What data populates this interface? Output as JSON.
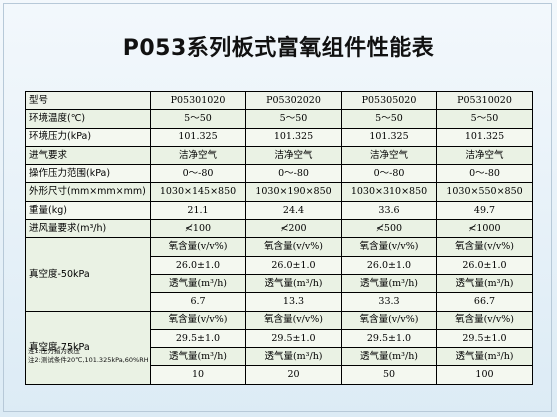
{
  "title": "P053系列板式富氧组件性能表",
  "header": {
    "label": "型号",
    "models": [
      "P05301020",
      "P05302020",
      "P05305020",
      "P05310020"
    ]
  },
  "rows": [
    {
      "label": "环境温度(℃)",
      "values": [
        "5～50",
        "5～50",
        "5～50",
        "5～50"
      ]
    },
    {
      "label": "环境压力(kPa)",
      "values": [
        "101.325",
        "101.325",
        "101.325",
        "101.325"
      ]
    },
    {
      "label": "进气要求",
      "values": [
        "洁净空气",
        "洁净空气",
        "洁净空气",
        "洁净空气"
      ]
    },
    {
      "label": "操作压力范围(kPa)",
      "values": [
        "0～-80",
        "0～-80",
        "0～-80",
        "0～-80"
      ]
    },
    {
      "label": "外形尺寸(mm×mm×mm)",
      "values": [
        "1030×145×850",
        "1030×190×850",
        "1030×310×850",
        "1030×550×850"
      ]
    },
    {
      "label": "重量(kg)",
      "values": [
        "21.1",
        "24.4",
        "33.6",
        "49.7"
      ]
    },
    {
      "label": "进风量要求(m³/h)",
      "values": [
        "≮100",
        "≮200",
        "≮500",
        "≮1000"
      ]
    }
  ],
  "vacuum_groups": [
    {
      "label": "真空度-50kPa",
      "lines": [
        [
          "氧含量(v/v%)",
          "氧含量(v/v%)",
          "氧含量(v/v%)",
          "氧含量(v/v%)"
        ],
        [
          "26.0±1.0",
          "26.0±1.0",
          "26.0±1.0",
          "26.0±1.0"
        ],
        [
          "透气量(m³/h)",
          "透气量(m³/h)",
          "透气量(m³/h)",
          "透气量(m³/h)"
        ],
        [
          "6.7",
          "13.3",
          "33.3",
          "66.7"
        ]
      ]
    },
    {
      "label": "真空度-75kPa",
      "lines": [
        [
          "氧含量(v/v%)",
          "氧含量(v/v%)",
          "氧含量(v/v%)",
          "氧含量(v/v%)"
        ],
        [
          "29.5±1.0",
          "29.5±1.0",
          "29.5±1.0",
          "29.5±1.0"
        ],
        [
          "透气量(m³/h)",
          "透气量(m³/h)",
          "透气量(m³/h)",
          "透气量(m³/h)"
        ],
        [
          "10",
          "20",
          "50",
          "100"
        ]
      ]
    }
  ],
  "notes": [
    "注1:压力指为表压",
    "注2:测试条件20℃,101.325kPa,60%RH"
  ]
}
